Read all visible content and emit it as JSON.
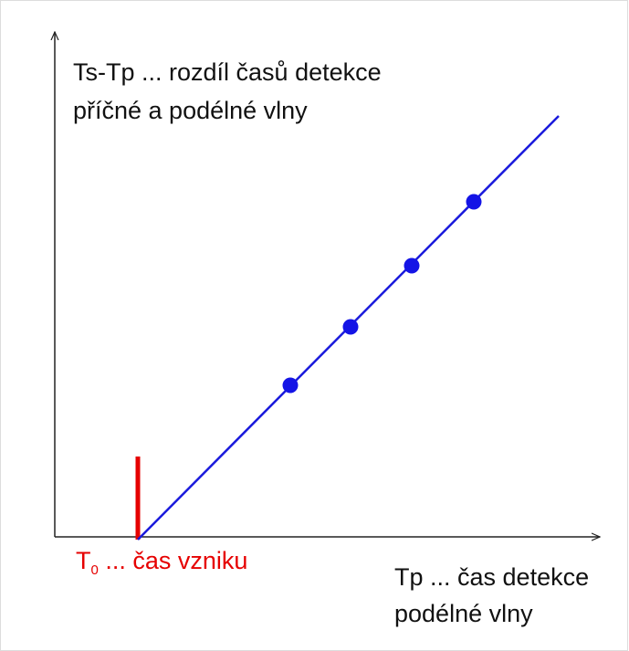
{
  "y_axis_label": [
    "Ts-Tp ... rozdíl časů detekce",
    "příčné a podélné vlny"
  ],
  "origin_label": {
    "symbol": "T",
    "subscript": "0",
    "text": " ... čas vzniku"
  },
  "x_axis_label": [
    "Tp ... čas detekce",
    "podélné vlny"
  ]
}
